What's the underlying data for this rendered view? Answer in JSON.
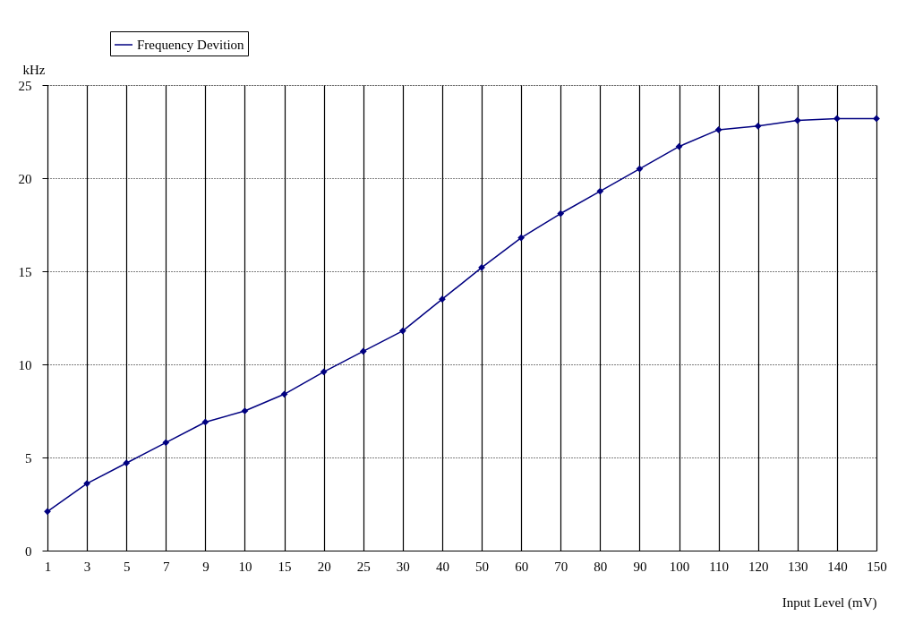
{
  "chart_data": {
    "type": "line",
    "xlabel": "Input Level (mV)",
    "ylabel": "kHz",
    "categories": [
      "1",
      "3",
      "5",
      "7",
      "9",
      "10",
      "15",
      "20",
      "25",
      "30",
      "40",
      "50",
      "60",
      "70",
      "80",
      "90",
      "100",
      "110",
      "120",
      "130",
      "140",
      "150"
    ],
    "series": [
      {
        "name": "Frequency Devition",
        "color": "#000080",
        "values": [
          2.1,
          3.6,
          4.7,
          5.8,
          6.9,
          7.5,
          8.4,
          9.6,
          10.7,
          11.8,
          13.5,
          15.2,
          16.8,
          18.1,
          19.3,
          20.5,
          21.7,
          22.6,
          22.8,
          23.1,
          23.2,
          23.2
        ]
      }
    ],
    "ylim": [
      0,
      25
    ],
    "yticks": [
      0,
      5,
      10,
      15,
      20,
      25
    ],
    "grid": true,
    "legend": "top left",
    "marker": "diamond",
    "line_style": "solid"
  }
}
